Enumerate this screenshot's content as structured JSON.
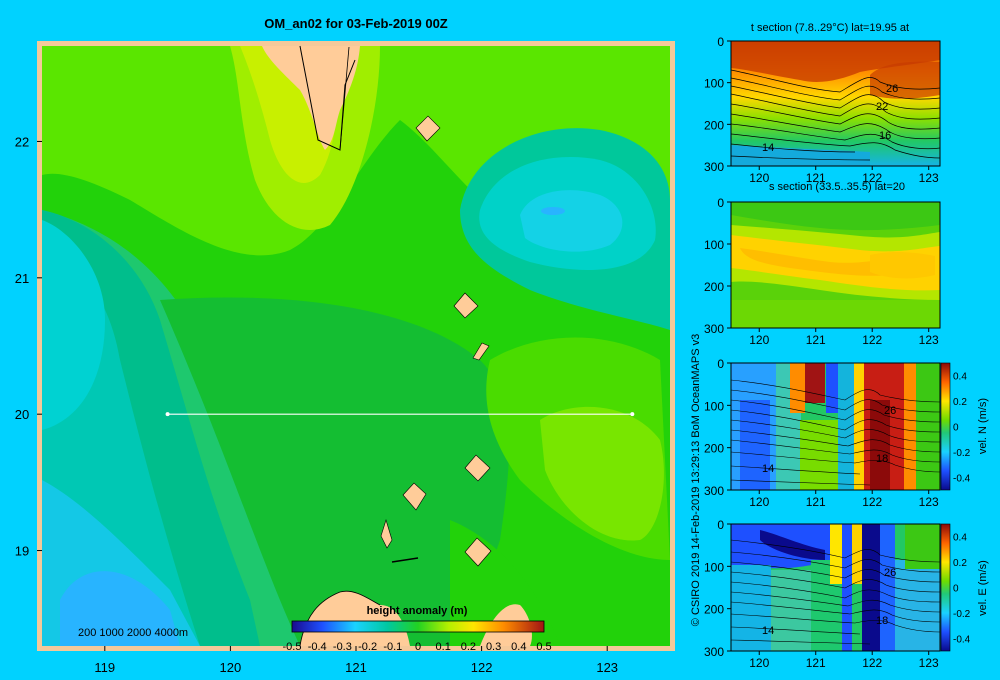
{
  "main_map": {
    "title": "OM_an02 for 03-Feb-2019 00Z",
    "x_ticks": [
      "119",
      "120",
      "121",
      "122",
      "123"
    ],
    "y_ticks": [
      "22",
      "21",
      "20",
      "19"
    ],
    "depth_legend": "200  1000  2000  4000m",
    "colorbar_title": "height anomaly (m)",
    "colorbar_ticks": [
      "-0.5",
      "-0.4",
      "-0.3",
      "-0.2",
      "-0.1",
      "0",
      "0.1",
      "0.2",
      "0.3",
      "0.4",
      "0.5"
    ],
    "section_line": {
      "lat": 20,
      "lon_start": 119.5,
      "lon_end": 123.2
    }
  },
  "panels": {
    "temp": {
      "title": "t section (7.8..29°C) lat=19.95 at",
      "y_ticks": [
        "0",
        "100",
        "200",
        "300"
      ],
      "x_ticks": [
        "120",
        "121",
        "122",
        "123"
      ],
      "contour_labels": [
        "26",
        "22",
        "16",
        "14"
      ]
    },
    "salt": {
      "title": "s section (33.5..35.5) lat=20",
      "y_ticks": [
        "0",
        "100",
        "200",
        "300"
      ],
      "x_ticks": [
        "120",
        "121",
        "122",
        "123"
      ]
    },
    "veln": {
      "y_ticks": [
        "0",
        "100",
        "200",
        "300"
      ],
      "x_ticks": [
        "120",
        "121",
        "122",
        "123"
      ],
      "contour_labels": [
        "26",
        "18",
        "14"
      ],
      "cbar_label": "vel. N (m/s)",
      "cbar_ticks": [
        "0.4",
        "0.2",
        "0",
        "-0.2",
        "-0.4"
      ]
    },
    "vele": {
      "y_ticks": [
        "0",
        "100",
        "200",
        "300"
      ],
      "x_ticks": [
        "120",
        "121",
        "122",
        "123"
      ],
      "contour_labels": [
        "26",
        "18",
        "14"
      ],
      "cbar_label": "vel. E (m/s)",
      "cbar_ticks": [
        "0.4",
        "0.2",
        "0",
        "-0.2",
        "-0.4"
      ]
    }
  },
  "credit": "© CSIRO 2019   14-Feb-2019 13:29:13 BoM OceanMAPS v3",
  "colors": {
    "background": "#00d2ff",
    "land": "#ffcc99",
    "frame": "#f5c99a"
  }
}
